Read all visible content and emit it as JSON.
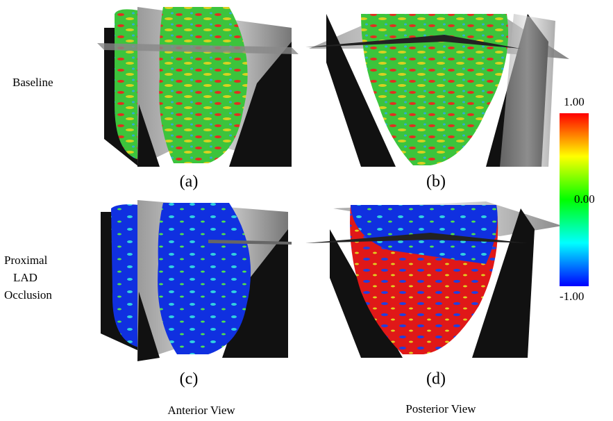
{
  "row_labels": [
    "Baseline",
    [
      "Proximal",
      "LAD",
      "Occlusion"
    ]
  ],
  "panels": [
    "(a)",
    "(b)",
    "(c)",
    "(d)"
  ],
  "column_labels": [
    "Anterior View",
    "Posterior View"
  ],
  "colorbar": {
    "lim": [
      -1,
      1
    ],
    "ticks": [
      {
        "value": 1,
        "label": "1.00"
      },
      {
        "value": 0,
        "label": "0.00"
      },
      {
        "value": -1,
        "label": "-1.00"
      }
    ]
  }
}
